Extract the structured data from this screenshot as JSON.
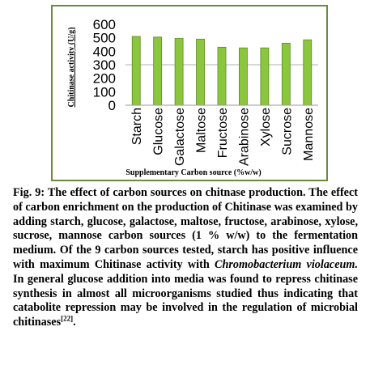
{
  "chart_data": {
    "type": "bar",
    "categories": [
      "Starch",
      "Glucose",
      "Galactose",
      "Maltose",
      "Fructose",
      "Arabinose",
      "Xylose",
      "Sucrose",
      "Mannose"
    ],
    "values": [
      510,
      505,
      495,
      490,
      430,
      425,
      425,
      460,
      485
    ],
    "ylim": [
      0,
      600
    ],
    "yticks": [
      "0",
      "100",
      "200",
      "300",
      "400",
      "500",
      "600"
    ],
    "ylabel": "Chitinase activity (U/g)",
    "xlabel": "Supplementary Carbon source (%w/w)",
    "bar_color": "#8cc63f",
    "bar_edge_color": "#5a8a1e",
    "grid": true,
    "gridlines": [
      300
    ]
  },
  "caption": {
    "label": "Fig. 9:",
    "text_before": " The effect of carbon sources on chitnase production. The effect of carbon enrichment on the production of Chitinase was examined by adding starch, glucose, galactose, maltose, fructose, arabinose, xylose, sucrose, mannose carbon sources (1 % w/w) to the fermentation medium. Of the 9 carbon sources tested, starch has positive influence with maximum Chitinase activity with ",
    "species": "Chromobacterium violaceum.",
    "text_after": " In general glucose addition into media was found to repress chitinase synthesis in almost all microorganisms studied thus indicating that catabolite repression may be involved in the regulation of microbial chitinases",
    "ref": "[22]",
    "end": "."
  }
}
